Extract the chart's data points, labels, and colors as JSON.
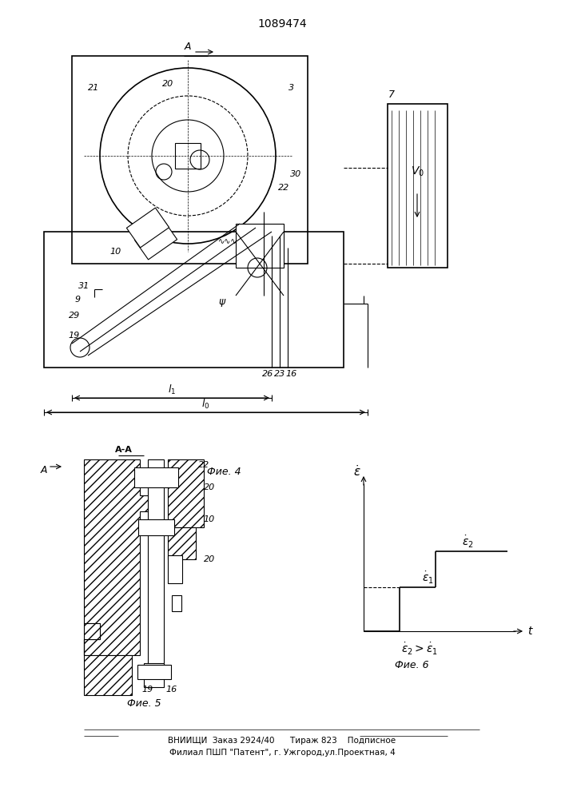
{
  "title": "1089474",
  "bg_color": "#ffffff",
  "line_color": "#000000",
  "footer_line1": "ВНИИЩИ  Заказ 2924/40      Тираж 823    Подписное",
  "footer_line2": "Филиал ПШП \"Патент\", г. Ужгород,ул.Проектная, 4",
  "fig4_label": "Фие. 4",
  "fig5_label": "Фие. 5",
  "fig6_label": "Фие. 6"
}
